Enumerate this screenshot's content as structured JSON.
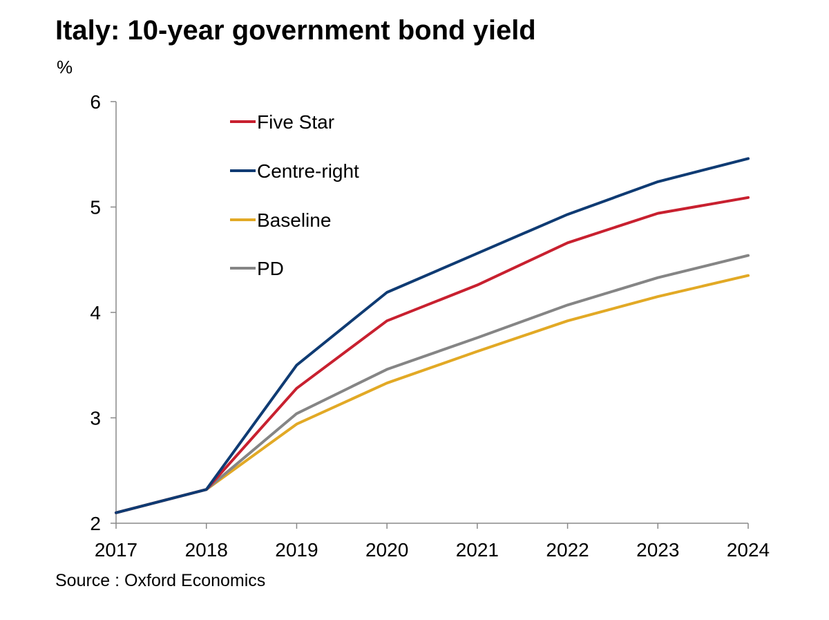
{
  "title": "Italy: 10-year government bond yield",
  "unit_label": "%",
  "source": "Source : Oxford Economics",
  "chart_data": {
    "type": "line",
    "x": [
      "2017",
      "2018",
      "2019",
      "2020",
      "2021",
      "2022",
      "2023",
      "2024"
    ],
    "ylim": [
      2,
      6
    ],
    "yticks": [
      "2",
      "3",
      "4",
      "5",
      "6"
    ],
    "grid": false,
    "legend_position": "top-left",
    "series": [
      {
        "name": "Five Star",
        "color": "#c8202f",
        "values": [
          2.1,
          2.32,
          3.28,
          3.92,
          4.26,
          4.66,
          4.94,
          5.09
        ]
      },
      {
        "name": "Centre-right",
        "color": "#0f3b73",
        "values": [
          2.1,
          2.32,
          3.5,
          4.19,
          4.56,
          4.93,
          5.24,
          5.46
        ]
      },
      {
        "name": "Baseline",
        "color": "#e2a925",
        "values": [
          2.1,
          2.32,
          2.94,
          3.33,
          3.63,
          3.92,
          4.15,
          4.35
        ]
      },
      {
        "name": "PD",
        "color": "#858585",
        "values": [
          2.1,
          2.32,
          3.04,
          3.46,
          3.76,
          4.07,
          4.33,
          4.54
        ]
      }
    ]
  }
}
